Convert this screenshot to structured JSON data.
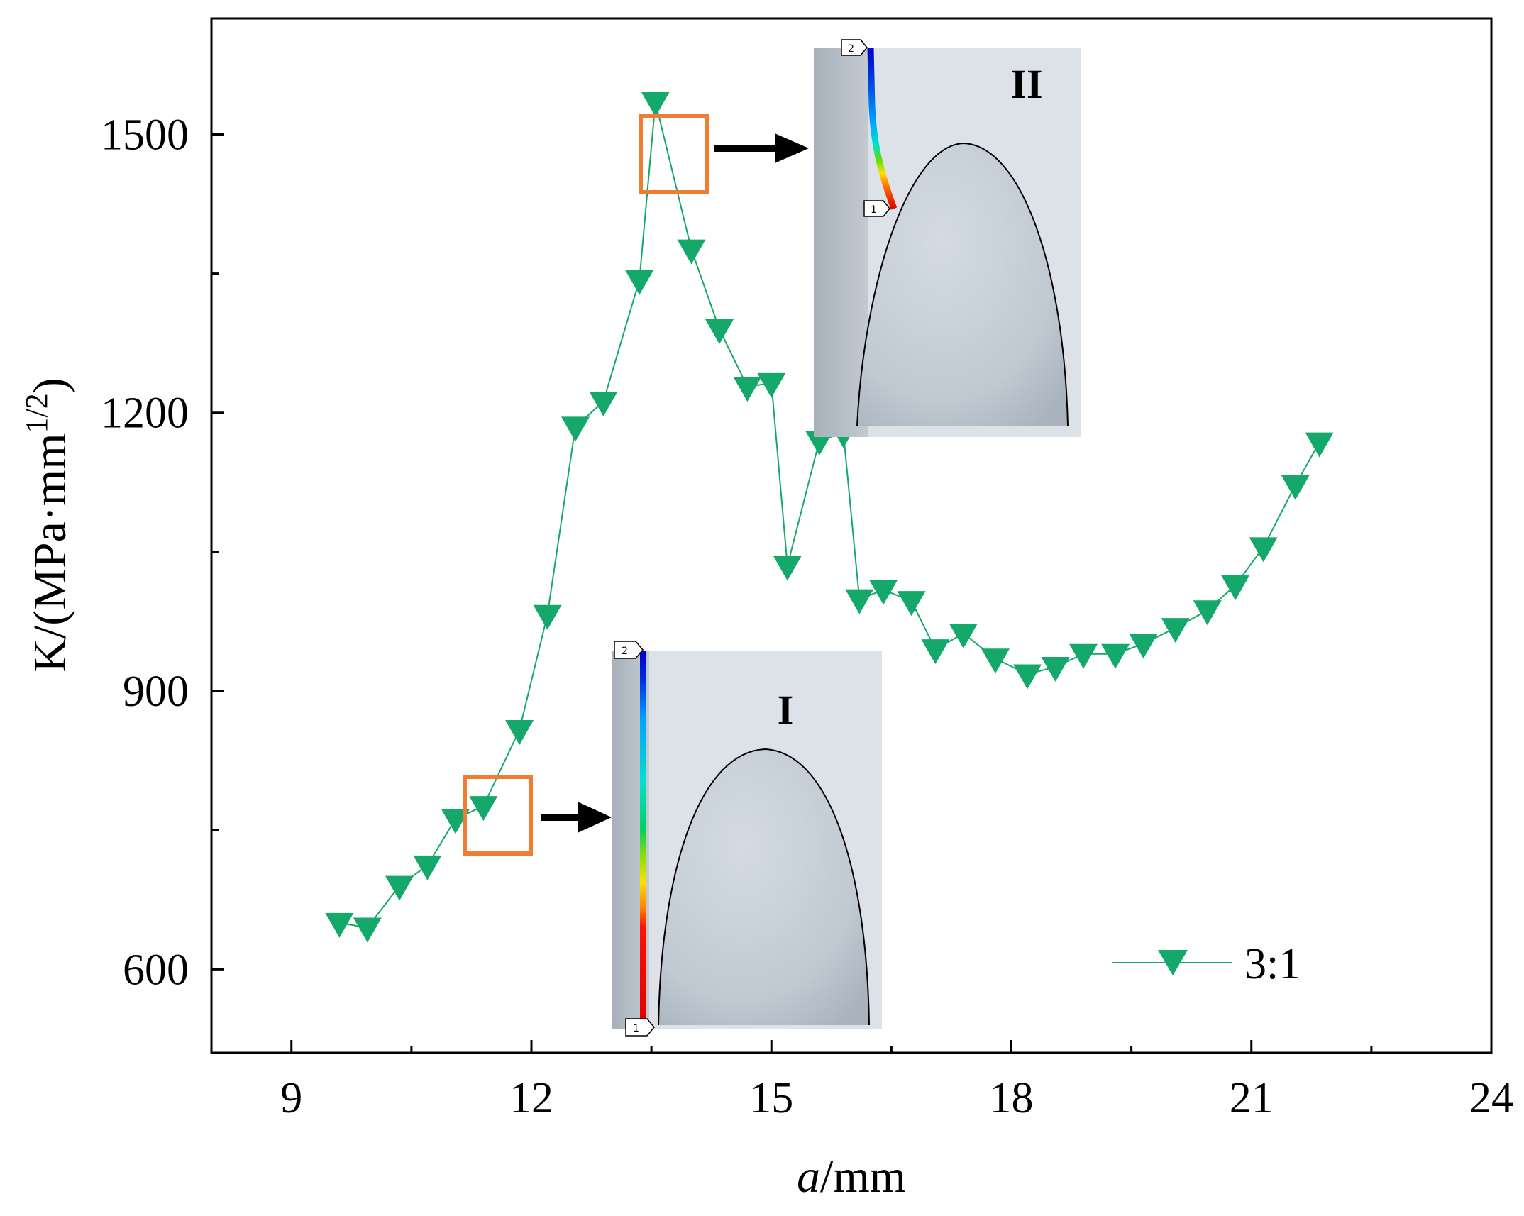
{
  "chart_data": {
    "type": "line",
    "xlabel_italic": "a",
    "xlabel_rest": "/mm",
    "ylabel_main": "K/(MPa·mm",
    "ylabel_sup": "1/2",
    "ylabel_end": ")",
    "xlim": [
      8,
      24
    ],
    "ylim": [
      510,
      1625
    ],
    "xticks": [
      9,
      12,
      15,
      18,
      21,
      24
    ],
    "yticks": [
      600,
      900,
      1200,
      1500
    ],
    "series": [
      {
        "name": "3:1",
        "color": "#14a86a",
        "marker": "triangle-down",
        "x": [
          9.6,
          9.95,
          10.35,
          10.7,
          11.05,
          11.4,
          11.85,
          12.2,
          12.55,
          12.9,
          13.35,
          13.55,
          14.0,
          14.35,
          14.7,
          15.0,
          15.2,
          15.6,
          15.9,
          16.1,
          16.4,
          16.75,
          17.05,
          17.4,
          17.8,
          18.2,
          18.55,
          18.9,
          19.3,
          19.65,
          20.05,
          20.45,
          20.8,
          21.15,
          21.55,
          21.85
        ],
        "y": [
          650,
          645,
          690,
          712,
          762,
          776,
          858,
          982,
          1185,
          1212,
          1343,
          1535,
          1376,
          1290,
          1228,
          1232,
          1035,
          1170,
          1178,
          999,
          1009,
          997,
          945,
          962,
          935,
          918,
          926,
          940,
          940,
          951,
          968,
          987,
          1014,
          1055,
          1122,
          1168
        ]
      }
    ],
    "legend": {
      "label": "3:1",
      "position": "bottom-right"
    },
    "annotations": [
      {
        "label": "I",
        "highlight_x": 11.4,
        "highlight_y": 776,
        "node_top": "2",
        "node_bottom": "1"
      },
      {
        "label": "II",
        "highlight_x": 13.55,
        "highlight_y": 1535,
        "node_top": "2",
        "node_bottom": "1"
      }
    ],
    "colors": {
      "series": "#14a86a",
      "highlight_box": "#ef7d31",
      "arrow": "#000000",
      "inset_bg": "#dde2e8",
      "inset_strip": "#b6bec7"
    }
  }
}
